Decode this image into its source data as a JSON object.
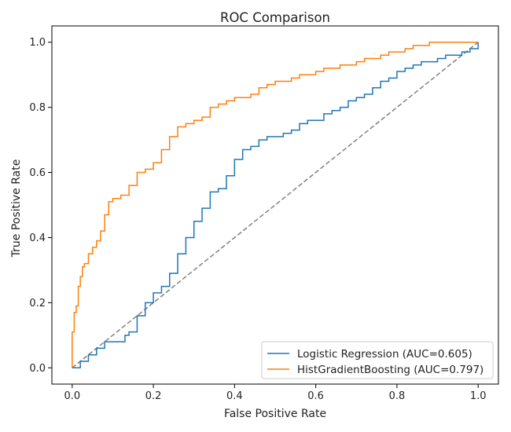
{
  "chart_data": {
    "type": "line",
    "title": "ROC Comparison",
    "xlabel": "False Positive Rate",
    "ylabel": "True Positive Rate",
    "xlim": [
      -0.05,
      1.05
    ],
    "ylim": [
      -0.05,
      1.05
    ],
    "xticks": [
      0.0,
      0.2,
      0.4,
      0.6,
      0.8,
      1.0
    ],
    "yticks": [
      0.0,
      0.2,
      0.4,
      0.6,
      0.8,
      1.0
    ],
    "xtick_labels": [
      "0.0",
      "0.2",
      "0.4",
      "0.6",
      "0.8",
      "1.0"
    ],
    "ytick_labels": [
      "0.0",
      "0.2",
      "0.4",
      "0.6",
      "0.8",
      "1.0"
    ],
    "grid": false,
    "legend_position": "lower-right",
    "series": [
      {
        "name": "Logistic Regression (AUC=0.605)",
        "color": "#1f77b4",
        "x": [
          0.0,
          0.02,
          0.04,
          0.06,
          0.08,
          0.1,
          0.13,
          0.14,
          0.16,
          0.18,
          0.2,
          0.22,
          0.24,
          0.26,
          0.28,
          0.3,
          0.32,
          0.34,
          0.36,
          0.38,
          0.4,
          0.42,
          0.44,
          0.46,
          0.48,
          0.5,
          0.52,
          0.54,
          0.56,
          0.58,
          0.6,
          0.62,
          0.64,
          0.66,
          0.68,
          0.7,
          0.72,
          0.74,
          0.76,
          0.78,
          0.8,
          0.82,
          0.84,
          0.86,
          0.88,
          0.9,
          0.92,
          0.94,
          0.96,
          0.98,
          1.0
        ],
        "y": [
          0.0,
          0.02,
          0.04,
          0.06,
          0.08,
          0.08,
          0.1,
          0.11,
          0.16,
          0.2,
          0.23,
          0.25,
          0.29,
          0.35,
          0.4,
          0.45,
          0.49,
          0.54,
          0.55,
          0.59,
          0.64,
          0.67,
          0.68,
          0.7,
          0.71,
          0.71,
          0.72,
          0.73,
          0.75,
          0.76,
          0.76,
          0.78,
          0.79,
          0.8,
          0.82,
          0.83,
          0.84,
          0.86,
          0.88,
          0.89,
          0.91,
          0.92,
          0.93,
          0.94,
          0.94,
          0.95,
          0.96,
          0.96,
          0.97,
          0.98,
          1.0
        ]
      },
      {
        "name": "HistGradientBoosting (AUC=0.797)",
        "color": "#ff7f0e",
        "x": [
          0.0,
          0.0,
          0.005,
          0.01,
          0.015,
          0.02,
          0.025,
          0.03,
          0.035,
          0.04,
          0.05,
          0.06,
          0.07,
          0.08,
          0.09,
          0.1,
          0.12,
          0.14,
          0.16,
          0.18,
          0.2,
          0.22,
          0.24,
          0.26,
          0.28,
          0.3,
          0.32,
          0.34,
          0.36,
          0.38,
          0.4,
          0.42,
          0.44,
          0.46,
          0.48,
          0.5,
          0.52,
          0.54,
          0.56,
          0.58,
          0.6,
          0.62,
          0.64,
          0.66,
          0.68,
          0.7,
          0.72,
          0.74,
          0.76,
          0.78,
          0.8,
          0.82,
          0.84,
          0.86,
          0.88,
          0.9,
          0.92,
          0.94,
          0.96,
          0.98,
          1.0
        ],
        "y": [
          0.0,
          0.11,
          0.17,
          0.19,
          0.25,
          0.28,
          0.31,
          0.32,
          0.32,
          0.35,
          0.37,
          0.39,
          0.42,
          0.47,
          0.51,
          0.52,
          0.53,
          0.56,
          0.6,
          0.61,
          0.63,
          0.67,
          0.71,
          0.74,
          0.75,
          0.76,
          0.77,
          0.8,
          0.81,
          0.82,
          0.83,
          0.83,
          0.84,
          0.86,
          0.87,
          0.88,
          0.88,
          0.89,
          0.9,
          0.9,
          0.91,
          0.92,
          0.92,
          0.93,
          0.93,
          0.94,
          0.95,
          0.95,
          0.96,
          0.97,
          0.97,
          0.98,
          0.99,
          0.99,
          1.0,
          1.0,
          1.0,
          1.0,
          1.0,
          1.0,
          1.0
        ]
      }
    ],
    "reference_line": {
      "x": [
        0.0,
        1.0
      ],
      "y": [
        0.0,
        1.0
      ],
      "color": "#808080",
      "style": "dashed"
    }
  }
}
